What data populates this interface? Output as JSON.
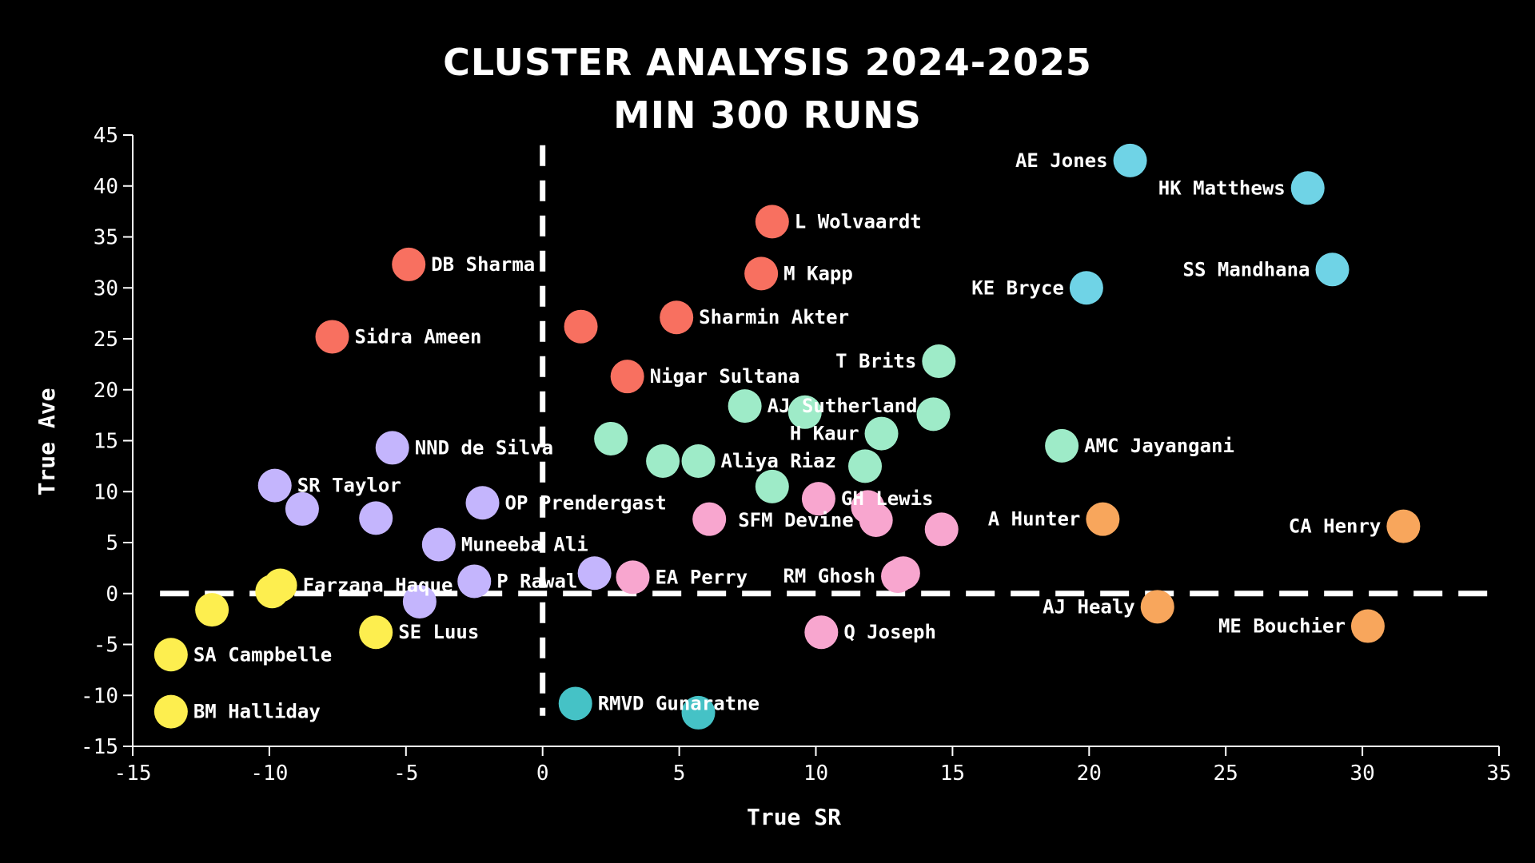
{
  "chart_data": {
    "type": "scatter",
    "title": "CLUSTER ANALYSIS 2024-2025",
    "subtitle": "MIN 300 RUNS",
    "xlabel": "True SR",
    "ylabel": "True Ave",
    "xlim": [
      -15,
      35
    ],
    "ylim": [
      -15,
      45
    ],
    "x_ticks": [
      -15,
      -10,
      -5,
      0,
      5,
      10,
      15,
      20,
      25,
      30,
      35
    ],
    "y_ticks": [
      -15,
      -10,
      -5,
      0,
      5,
      10,
      15,
      20,
      25,
      30,
      35,
      40,
      45
    ],
    "reference_lines": [
      {
        "axis": "x",
        "value": 0,
        "style": "dashed"
      },
      {
        "axis": "y",
        "value": 0,
        "style": "dashed"
      }
    ],
    "grid": false,
    "legend": "none",
    "cluster_colors": {
      "red": "#f87060",
      "cyan": "#6fd3e6",
      "mint": "#9eebc8",
      "purple": "#c4b5fd",
      "pink": "#f8a6cf",
      "orange": "#f8a65c",
      "yellow": "#fdee4f",
      "teal": "#45c2c6"
    },
    "points": [
      {
        "x": 21.5,
        "y": 42.5,
        "label": "AE Jones",
        "cluster": "cyan"
      },
      {
        "x": 28.0,
        "y": 39.8,
        "label": "HK Matthews",
        "cluster": "cyan"
      },
      {
        "x": 28.9,
        "y": 31.8,
        "label": "SS Mandhana",
        "cluster": "cyan"
      },
      {
        "x": 19.9,
        "y": 30.0,
        "label": "KE Bryce",
        "cluster": "cyan"
      },
      {
        "x": 8.4,
        "y": 36.5,
        "label": "L Wolvaardt",
        "cluster": "red"
      },
      {
        "x": -4.9,
        "y": 32.3,
        "label": "DB Sharma",
        "cluster": "red"
      },
      {
        "x": 8.0,
        "y": 31.4,
        "label": "M Kapp",
        "cluster": "red"
      },
      {
        "x": 4.9,
        "y": 27.1,
        "label": "Sharmin Akter",
        "cluster": "red"
      },
      {
        "x": 1.4,
        "y": 26.2,
        "label": "",
        "cluster": "red"
      },
      {
        "x": -7.7,
        "y": 25.2,
        "label": "Sidra Ameen",
        "cluster": "red"
      },
      {
        "x": 3.1,
        "y": 21.3,
        "label": "Nigar Sultana",
        "cluster": "red"
      },
      {
        "x": 14.5,
        "y": 22.8,
        "label": "T Brits",
        "cluster": "mint"
      },
      {
        "x": 7.4,
        "y": 18.4,
        "label": "AJ Sutherland",
        "cluster": "mint"
      },
      {
        "x": 9.6,
        "y": 17.8,
        "label": "",
        "cluster": "mint"
      },
      {
        "x": 14.3,
        "y": 17.6,
        "label": "",
        "cluster": "mint"
      },
      {
        "x": 12.4,
        "y": 15.7,
        "label": "H Kaur",
        "cluster": "mint"
      },
      {
        "x": 2.5,
        "y": 15.2,
        "label": "",
        "cluster": "mint"
      },
      {
        "x": 19.0,
        "y": 14.5,
        "label": "AMC Jayangani",
        "cluster": "mint"
      },
      {
        "x": 4.4,
        "y": 13.0,
        "label": "",
        "cluster": "mint"
      },
      {
        "x": 5.7,
        "y": 13.0,
        "label": "Aliya Riaz",
        "cluster": "mint"
      },
      {
        "x": 11.8,
        "y": 12.5,
        "label": "",
        "cluster": "mint"
      },
      {
        "x": 8.4,
        "y": 10.5,
        "label": "",
        "cluster": "mint"
      },
      {
        "x": -5.5,
        "y": 14.3,
        "label": "NND de Silva",
        "cluster": "purple"
      },
      {
        "x": -9.8,
        "y": 10.6,
        "label": "SR Taylor",
        "cluster": "purple"
      },
      {
        "x": -8.8,
        "y": 8.3,
        "label": "",
        "cluster": "purple"
      },
      {
        "x": -2.2,
        "y": 8.9,
        "label": "OP Prendergast",
        "cluster": "purple"
      },
      {
        "x": -6.1,
        "y": 7.4,
        "label": "",
        "cluster": "purple"
      },
      {
        "x": -3.8,
        "y": 4.8,
        "label": "Muneeba Ali",
        "cluster": "purple"
      },
      {
        "x": 1.9,
        "y": 2.0,
        "label": "",
        "cluster": "purple"
      },
      {
        "x": -2.5,
        "y": 1.2,
        "label": "P Rawal",
        "cluster": "purple"
      },
      {
        "x": -4.5,
        "y": -0.8,
        "label": "",
        "cluster": "purple"
      },
      {
        "x": 10.1,
        "y": 9.3,
        "label": "GH Lewis",
        "cluster": "pink"
      },
      {
        "x": 11.9,
        "y": 8.5,
        "label": "",
        "cluster": "pink"
      },
      {
        "x": 12.2,
        "y": 7.2,
        "label": "SFM Devine",
        "cluster": "pink"
      },
      {
        "x": 6.1,
        "y": 7.3,
        "label": "",
        "cluster": "pink"
      },
      {
        "x": 14.6,
        "y": 6.3,
        "label": "",
        "cluster": "pink"
      },
      {
        "x": 13.2,
        "y": 2.0,
        "label": "",
        "cluster": "pink"
      },
      {
        "x": 13.0,
        "y": 1.7,
        "label": "RM Ghosh",
        "cluster": "pink"
      },
      {
        "x": 3.3,
        "y": 1.6,
        "label": "EA Perry",
        "cluster": "pink"
      },
      {
        "x": 10.2,
        "y": -3.8,
        "label": "Q Joseph",
        "cluster": "pink"
      },
      {
        "x": 20.5,
        "y": 7.3,
        "label": "A Hunter",
        "cluster": "orange"
      },
      {
        "x": 31.5,
        "y": 6.6,
        "label": "CA Henry",
        "cluster": "orange"
      },
      {
        "x": 22.5,
        "y": -1.3,
        "label": "AJ Healy",
        "cluster": "orange"
      },
      {
        "x": 30.2,
        "y": -3.2,
        "label": "ME Bouchier",
        "cluster": "orange"
      },
      {
        "x": -9.6,
        "y": 0.8,
        "label": "Farzana Haque",
        "cluster": "yellow"
      },
      {
        "x": -9.9,
        "y": 0.2,
        "label": "",
        "cluster": "yellow"
      },
      {
        "x": -12.1,
        "y": -1.6,
        "label": "",
        "cluster": "yellow"
      },
      {
        "x": -6.1,
        "y": -3.8,
        "label": "SE Luus",
        "cluster": "yellow"
      },
      {
        "x": -13.6,
        "y": -6.0,
        "label": "SA Campbelle",
        "cluster": "yellow"
      },
      {
        "x": -13.6,
        "y": -11.6,
        "label": "BM Halliday",
        "cluster": "yellow"
      },
      {
        "x": 1.2,
        "y": -10.8,
        "label": "RMVD Gunaratne",
        "cluster": "teal"
      },
      {
        "x": 5.7,
        "y": -11.7,
        "label": "",
        "cluster": "teal"
      }
    ]
  }
}
